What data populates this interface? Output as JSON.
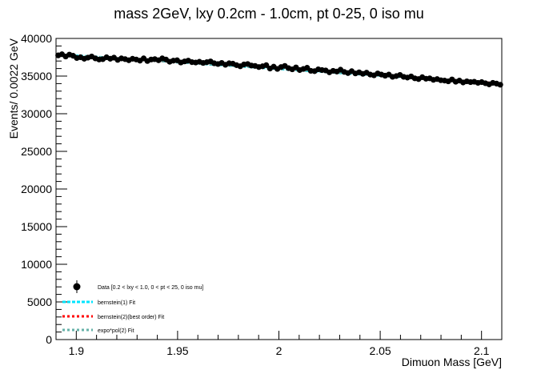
{
  "chart_data": {
    "type": "scatter",
    "title": "mass 2GeV, lxy 0.2cm - 1.0cm, pt 0-25, 0 iso mu",
    "xlabel": "Dimuon Mass [GeV]",
    "ylabel": "Events/ 0.0022 GeV",
    "xlim": [
      1.89,
      2.11
    ],
    "ylim": [
      0,
      40000
    ],
    "x_ticks": [
      {
        "value": 1.9,
        "label": "1.9"
      },
      {
        "value": 1.95,
        "label": "1.95"
      },
      {
        "value": 2.0,
        "label": "2"
      },
      {
        "value": 2.05,
        "label": "2.05"
      },
      {
        "value": 2.1,
        "label": "2.1"
      }
    ],
    "y_ticks": [
      {
        "value": 0,
        "label": "0"
      },
      {
        "value": 5000,
        "label": "5000"
      },
      {
        "value": 10000,
        "label": "10000"
      },
      {
        "value": 15000,
        "label": "15000"
      },
      {
        "value": 20000,
        "label": "20000"
      },
      {
        "value": 25000,
        "label": "25000"
      },
      {
        "value": 30000,
        "label": "30000"
      },
      {
        "value": 35000,
        "label": "35000"
      },
      {
        "value": 40000,
        "label": "40000"
      }
    ],
    "grid": false,
    "legend_position": "bottom-left",
    "data_series": {
      "name": "Data [0.2 < lxy < 1.0, 0 < pt < 25, 0 iso mu]",
      "color": "#000000",
      "bin_width": 0.0022,
      "x_start": 1.8911,
      "values": [
        37750,
        37900,
        37600,
        37850,
        37700,
        37400,
        37500,
        37300,
        37450,
        37600,
        37350,
        37200,
        37250,
        37500,
        37300,
        37450,
        37150,
        37350,
        37250,
        37100,
        37300,
        37200,
        37050,
        37350,
        37000,
        37200,
        37250,
        37100,
        37350,
        37200,
        36900,
        37050,
        37100,
        36800,
        36950,
        37050,
        36850,
        36800,
        36900,
        36750,
        36850,
        36950,
        36700,
        36600,
        36750,
        36500,
        36700,
        36650,
        36450,
        36300,
        36550,
        36600,
        36400,
        36350,
        36200,
        36300,
        36450,
        36000,
        36250,
        35950,
        36200,
        36350,
        36050,
        35900,
        36150,
        35800,
        35950,
        36100,
        35700,
        35650,
        35900,
        35800,
        35750,
        35500,
        35700,
        35600,
        35850,
        35550,
        35400,
        35650,
        35350,
        35500,
        35300,
        35450,
        35200,
        35100,
        35350,
        35200,
        35050,
        35200,
        34900,
        35000,
        35150,
        34900,
        34800,
        34950,
        34700,
        34600,
        34850,
        34650,
        34700,
        34500,
        34600,
        34450,
        34400,
        34300,
        34550,
        34250,
        34400,
        34150,
        34300,
        34200,
        34250,
        34100,
        34200,
        34050,
        33900,
        34100,
        34000,
        33850
      ],
      "error": 190
    },
    "fits": [
      {
        "name": "bernstein(1) Fit",
        "color": "#00e5ff",
        "dash": "4,2",
        "y_start": 37900,
        "y_end": 34000,
        "curvature": 0
      },
      {
        "name": "bernstein(2)(best order) Fit",
        "color": "#ff0000",
        "dash": "3,3",
        "y_start": 37800,
        "y_end": 34000,
        "curvature": 120
      },
      {
        "name": "expo*pol(2) Fit",
        "color": "#66b2a8",
        "dash": "3,3",
        "y_start": 37850,
        "y_end": 33950,
        "curvature": 80
      }
    ]
  }
}
